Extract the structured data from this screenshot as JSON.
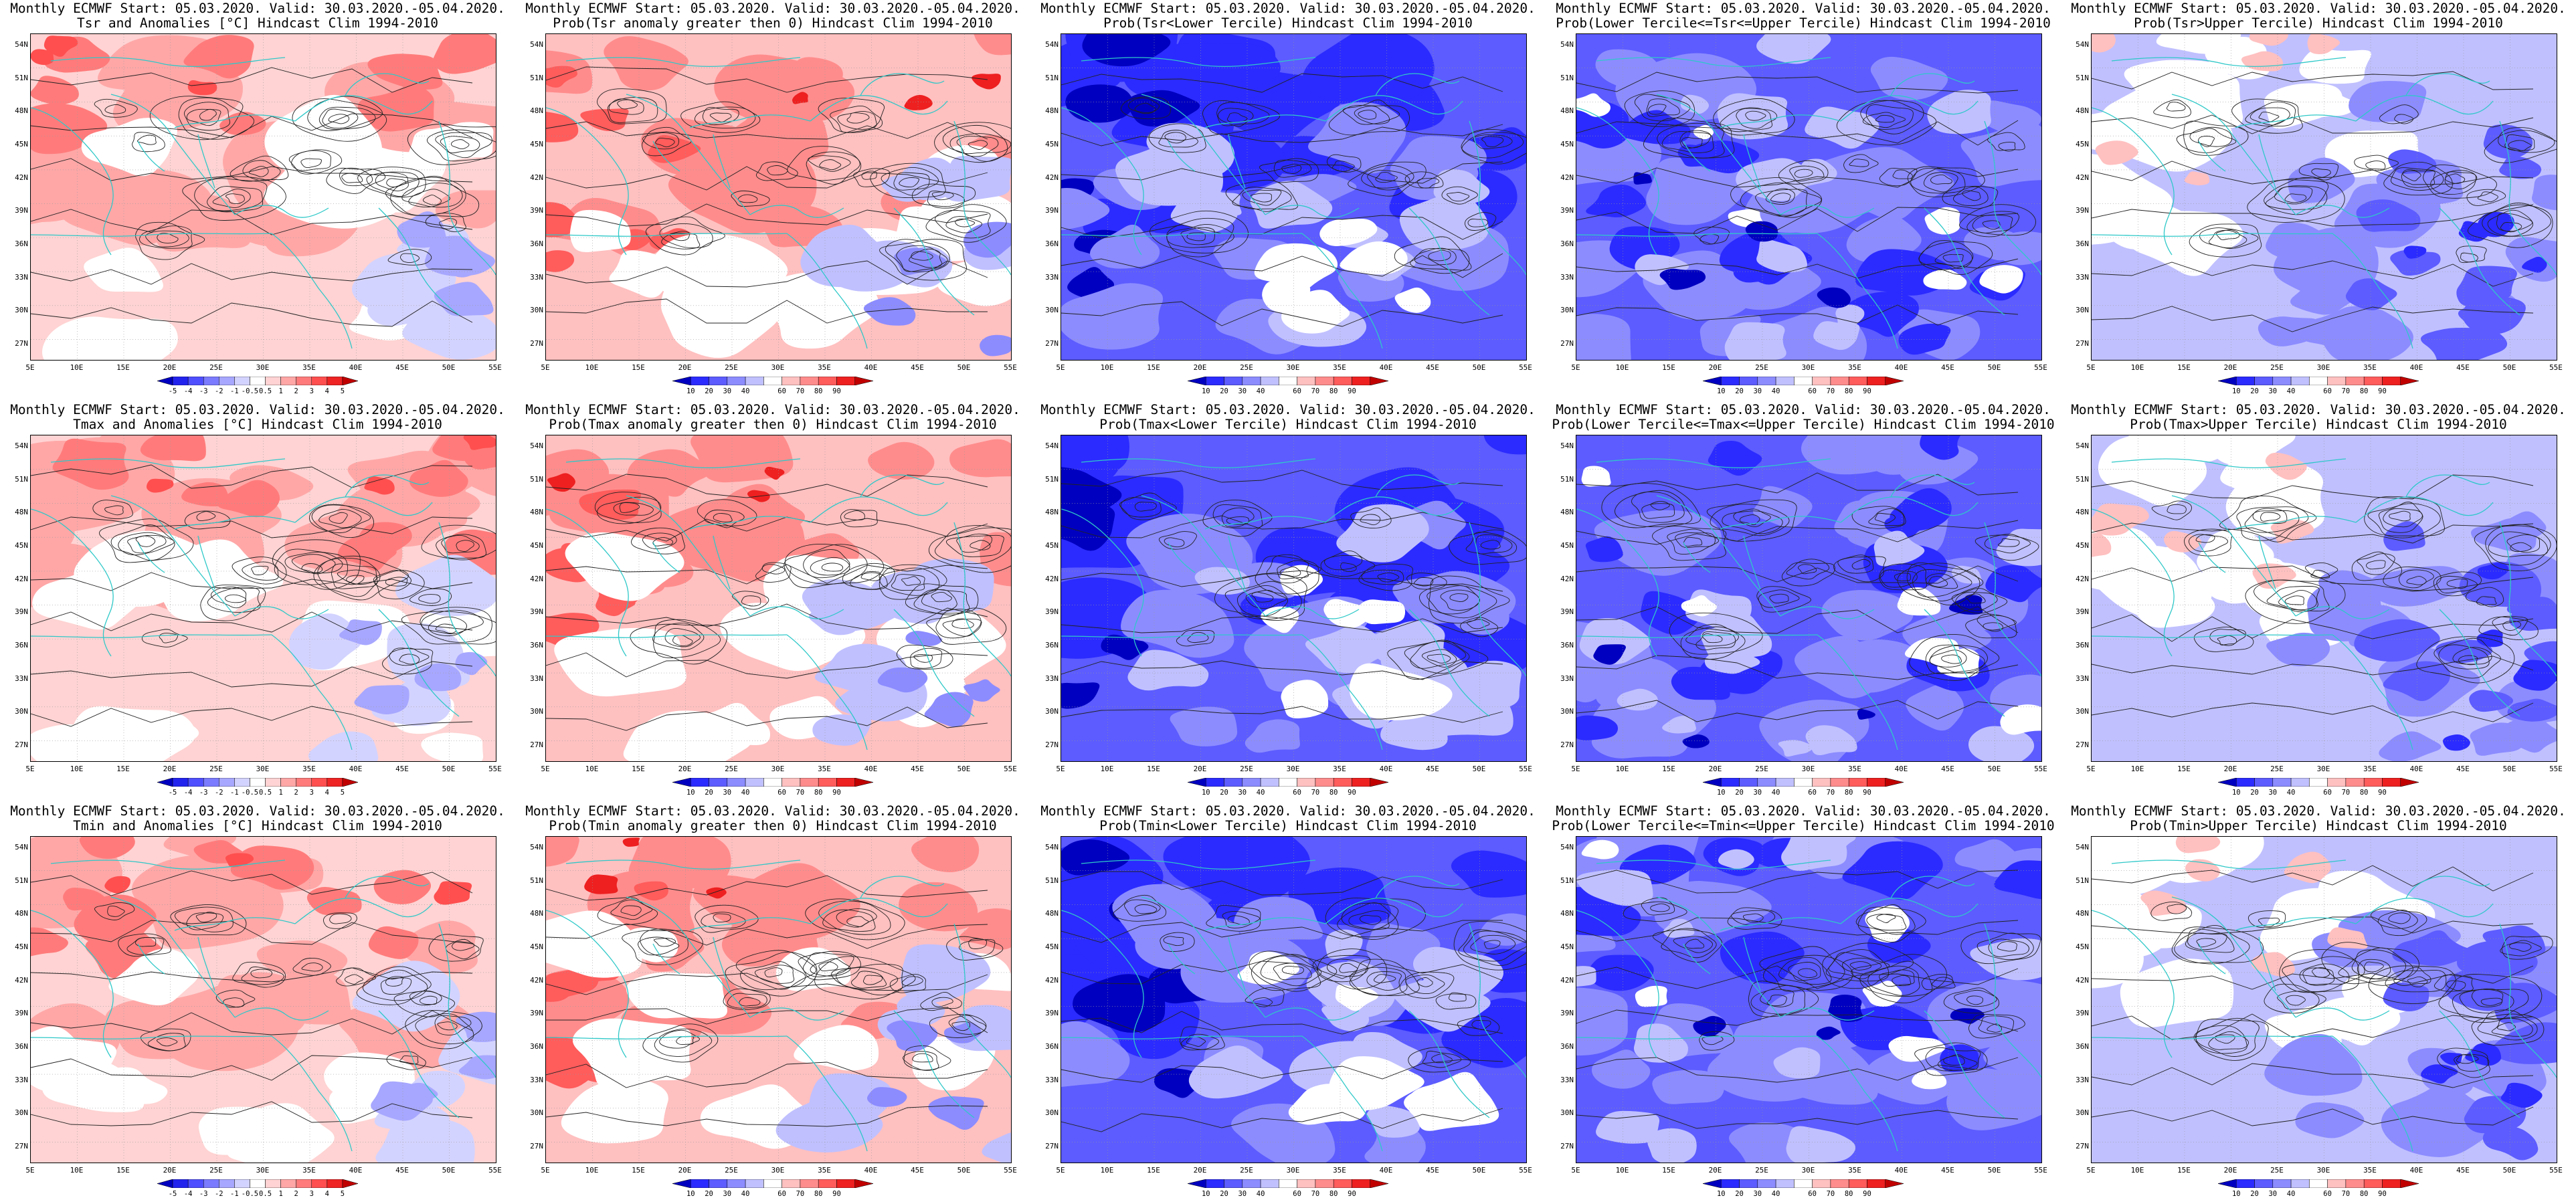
{
  "header": "Monthly ECMWF Start: 05.03.2020. Valid: 30.03.2020.-05.04.2020.",
  "lat_labels": [
    "54N",
    "51N",
    "48N",
    "45N",
    "42N",
    "39N",
    "36N",
    "33N",
    "30N",
    "27N"
  ],
  "lon_labels": [
    "5E",
    "10E",
    "15E",
    "20E",
    "25E",
    "30E",
    "35E",
    "40E",
    "45E",
    "50E",
    "55E"
  ],
  "colorbars": {
    "anomaly": [
      "-5",
      "-4",
      "-3",
      "-2",
      "-1",
      "-0.5",
      "0.5",
      "1",
      "2",
      "3",
      "4",
      "5"
    ],
    "probability": [
      "10",
      "20",
      "30",
      "40",
      "60",
      "70",
      "80",
      "90"
    ]
  },
  "colors": {
    "coast": "#2fc8c8",
    "contour": "#222222",
    "anomaly_scale": [
      "#0000c0",
      "#2323ee",
      "#4f4fff",
      "#7b7bff",
      "#a7a7ff",
      "#d3d3ff",
      "#ffffff",
      "#ffd3d3",
      "#ffa7a7",
      "#ff7b7b",
      "#ff4f4f",
      "#ee2323",
      "#c00000"
    ],
    "prob_scale": [
      "#0000c0",
      "#2b2bff",
      "#5c5cff",
      "#8c8cff",
      "#c0c0ff",
      "#ffffff",
      "#ffc0c0",
      "#ff8c8c",
      "#ff5c5c",
      "#ee2020",
      "#c00000"
    ]
  },
  "panels": [
    {
      "subtitle": "Tsr and Anomalies [°C] Hindcast Clim 1994-2010",
      "scale": "anomaly",
      "tone": "warm"
    },
    {
      "subtitle": "Prob(Tsr anomaly greater then 0) Hindcast Clim 1994-2010",
      "scale": "probability",
      "tone": "warm"
    },
    {
      "subtitle": "Prob(Tsr<Lower Tercile) Hindcast Clim 1994-2010",
      "scale": "probability",
      "tone": "cold"
    },
    {
      "subtitle": "Prob(Lower Tercile<=Tsr<=Upper Tercile) Hindcast Clim 1994-2010",
      "scale": "probability",
      "tone": "mid"
    },
    {
      "subtitle": "Prob(Tsr>Upper Tercile) Hindcast Clim 1994-2010",
      "scale": "probability",
      "tone": "upper"
    },
    {
      "subtitle": "Tmax and Anomalies [°C] Hindcast Clim 1994-2010",
      "scale": "anomaly",
      "tone": "warm"
    },
    {
      "subtitle": "Prob(Tmax anomaly greater then 0) Hindcast Clim 1994-2010",
      "scale": "probability",
      "tone": "warm"
    },
    {
      "subtitle": "Prob(Tmax<Lower Tercile) Hindcast Clim 1994-2010",
      "scale": "probability",
      "tone": "cold"
    },
    {
      "subtitle": "Prob(Lower Tercile<=Tmax<=Upper Tercile) Hindcast Clim 1994-2010",
      "scale": "probability",
      "tone": "mid"
    },
    {
      "subtitle": "Prob(Tmax>Upper Tercile) Hindcast Clim 1994-2010",
      "scale": "probability",
      "tone": "upper"
    },
    {
      "subtitle": "Tmin and Anomalies [°C] Hindcast Clim 1994-2010",
      "scale": "anomaly",
      "tone": "warm"
    },
    {
      "subtitle": "Prob(Tmin anomaly greater then 0) Hindcast Clim 1994-2010",
      "scale": "probability",
      "tone": "warm"
    },
    {
      "subtitle": "Prob(Tmin<Lower Tercile) Hindcast Clim 1994-2010",
      "scale": "probability",
      "tone": "cold"
    },
    {
      "subtitle": "Prob(Lower Tercile<=Tmin<=Upper Tercile) Hindcast Clim 1994-2010",
      "scale": "probability",
      "tone": "mid"
    },
    {
      "subtitle": "Prob(Tmin>Upper Tercile) Hindcast Clim 1994-2010",
      "scale": "probability",
      "tone": "upper"
    }
  ]
}
